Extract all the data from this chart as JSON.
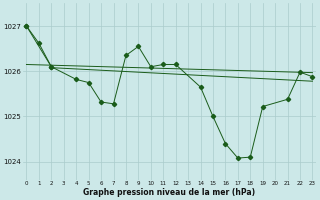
{
  "bg_color": "#cce8e8",
  "grid_color": "#aacccc",
  "line_color": "#1a5c1a",
  "title": "Graphe pression niveau de la mer (hPa)",
  "hours": [
    0,
    1,
    2,
    3,
    4,
    5,
    6,
    7,
    8,
    9,
    10,
    11,
    12,
    13,
    14,
    15,
    16,
    17,
    18,
    19,
    20,
    21,
    22,
    23
  ],
  "yticks": [
    1024,
    1025,
    1026,
    1027
  ],
  "ylim": [
    1023.6,
    1027.5
  ],
  "xlim": [
    -0.3,
    23.3
  ],
  "line1_x": [
    0,
    1,
    2
  ],
  "line1_y": [
    1027.0,
    1026.62,
    1026.1
  ],
  "trend1_x": [
    0,
    23
  ],
  "trend1_y": [
    1026.15,
    1025.97
  ],
  "trend2_x": [
    2,
    23
  ],
  "trend2_y": [
    1026.08,
    1025.78
  ],
  "main_x": [
    0,
    2,
    4,
    5,
    6,
    7,
    8,
    9,
    10,
    11,
    12,
    14,
    15,
    16,
    17,
    18,
    19,
    21,
    22,
    23
  ],
  "main_y": [
    1027.0,
    1026.1,
    1025.82,
    1025.75,
    1025.32,
    1025.28,
    1026.35,
    1026.55,
    1026.1,
    1026.15,
    1026.15,
    1025.65,
    1025.0,
    1024.4,
    1024.08,
    1024.1,
    1025.22,
    1025.38,
    1025.98,
    1025.88
  ]
}
